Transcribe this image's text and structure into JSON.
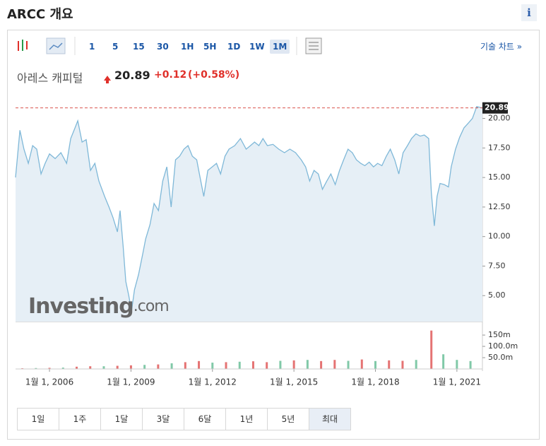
{
  "header": {
    "title": "ARCC 개요",
    "info": "i"
  },
  "toolbar": {
    "intervals": [
      "1",
      "5",
      "15",
      "30",
      "1H",
      "5H",
      "1D",
      "1W",
      "1M"
    ],
    "selected": 8,
    "link": "기술 차트 »"
  },
  "quote": {
    "name": "아레스 캐피털",
    "price": 20.89,
    "change": "+0.12",
    "change_pct": "(+0.58%)"
  },
  "watermark": [
    "Investing",
    ".com"
  ],
  "chart_data": [
    {
      "type": "area",
      "color": "#7fb8d8",
      "fill": "#e6eff6",
      "x": [
        2004.75,
        2004.91,
        2005.06,
        2005.22,
        2005.38,
        2005.53,
        2005.69,
        2005.84,
        2006.0,
        2006.21,
        2006.42,
        2006.63,
        2006.78,
        2006.94,
        2007.04,
        2007.2,
        2007.35,
        2007.51,
        2007.67,
        2007.82,
        2008.03,
        2008.19,
        2008.34,
        2008.5,
        2008.6,
        2008.71,
        2008.81,
        2008.92,
        2009.02,
        2009.13,
        2009.28,
        2009.44,
        2009.54,
        2009.7,
        2009.85,
        2010.01,
        2010.17,
        2010.32,
        2010.48,
        2010.64,
        2010.79,
        2010.95,
        2011.1,
        2011.26,
        2011.42,
        2011.52,
        2011.68,
        2011.83,
        2011.99,
        2012.15,
        2012.3,
        2012.46,
        2012.61,
        2012.82,
        2013.03,
        2013.24,
        2013.4,
        2013.55,
        2013.71,
        2013.86,
        2014.02,
        2014.23,
        2014.44,
        2014.65,
        2014.85,
        2015.06,
        2015.27,
        2015.43,
        2015.58,
        2015.74,
        2015.9,
        2016.05,
        2016.21,
        2016.36,
        2016.52,
        2016.68,
        2016.83,
        2016.99,
        2017.15,
        2017.3,
        2017.46,
        2017.61,
        2017.77,
        2017.93,
        2018.08,
        2018.24,
        2018.4,
        2018.55,
        2018.71,
        2018.86,
        2019.02,
        2019.18,
        2019.33,
        2019.49,
        2019.65,
        2019.8,
        2019.96,
        2020.06,
        2020.17,
        2020.27,
        2020.38,
        2020.53,
        2020.69,
        2020.79,
        2020.95,
        2021.1,
        2021.26,
        2021.42,
        2021.57,
        2021.73,
        2021.94
      ],
      "values": [
        15.0,
        19.0,
        17.4,
        16.2,
        17.7,
        17.4,
        15.3,
        16.2,
        17.0,
        16.6,
        17.1,
        16.2,
        18.3,
        19.2,
        19.8,
        18.0,
        18.2,
        15.6,
        16.2,
        14.7,
        13.4,
        12.5,
        11.6,
        10.4,
        12.2,
        9.2,
        6.2,
        5.0,
        3.7,
        5.5,
        6.8,
        8.6,
        9.8,
        11.0,
        12.8,
        12.2,
        14.7,
        15.9,
        12.5,
        16.5,
        16.8,
        17.4,
        17.7,
        16.8,
        16.5,
        15.3,
        13.4,
        15.6,
        15.9,
        16.2,
        15.3,
        16.8,
        17.4,
        17.7,
        18.3,
        17.4,
        17.7,
        18.0,
        17.7,
        18.3,
        17.7,
        17.8,
        17.4,
        17.1,
        17.4,
        17.1,
        16.5,
        15.9,
        14.7,
        15.6,
        15.3,
        14.0,
        14.7,
        15.3,
        14.4,
        15.6,
        16.5,
        17.4,
        17.1,
        16.5,
        16.2,
        16.0,
        16.3,
        15.9,
        16.2,
        16.0,
        16.8,
        17.4,
        16.5,
        15.3,
        17.1,
        17.7,
        18.3,
        18.7,
        18.5,
        18.6,
        18.3,
        13.7,
        10.9,
        13.4,
        14.5,
        14.4,
        14.2,
        15.9,
        17.4,
        18.4,
        19.2,
        19.6,
        20.0,
        21.0,
        20.89
      ],
      "xlim": [
        2004.75,
        2021.94
      ],
      "ylim": [
        2.8,
        21.35
      ],
      "yticks": [
        {
          "value": 5,
          "label": "5.00"
        },
        {
          "value": 7.5,
          "label": "7.50"
        },
        {
          "value": 10,
          "label": "10.00"
        },
        {
          "value": 12.5,
          "label": "12.50"
        },
        {
          "value": 15,
          "label": "15.00"
        },
        {
          "value": 17.5,
          "label": "17.50"
        },
        {
          "value": 20,
          "label": "20.00"
        }
      ]
    },
    {
      "type": "bar",
      "xlim": [
        2004.75,
        2021.94
      ],
      "ylim": [
        0,
        194
      ],
      "x": [
        2005,
        2005.5,
        2006,
        2006.5,
        2007,
        2007.5,
        2008,
        2008.5,
        2009,
        2009.5,
        2010,
        2010.5,
        2011,
        2011.5,
        2012,
        2012.5,
        2013,
        2013.5,
        2014,
        2014.5,
        2015,
        2015.5,
        2016,
        2016.5,
        2017,
        2017.5,
        2018,
        2018.5,
        2019,
        2019.5,
        2020.06,
        2020.5,
        2021,
        2021.5
      ],
      "values": [
        3,
        4,
        5,
        6,
        10,
        12,
        12,
        14,
        16,
        18,
        20,
        25,
        30,
        35,
        28,
        30,
        32,
        34,
        30,
        36,
        38,
        40,
        35,
        40,
        36,
        42,
        35,
        38,
        36,
        40,
        170,
        65,
        40,
        35
      ],
      "colors": [
        "#e57373",
        "#81c9a8",
        "#e57373",
        "#81c9a8",
        "#e57373",
        "#e57373",
        "#81c9a8",
        "#e57373",
        "#e57373",
        "#81c9a8",
        "#e57373",
        "#81c9a8",
        "#e57373",
        "#e57373",
        "#81c9a8",
        "#e57373",
        "#81c9a8",
        "#e57373",
        "#e57373",
        "#81c9a8",
        "#e57373",
        "#81c9a8",
        "#e57373",
        "#e57373",
        "#81c9a8",
        "#e57373",
        "#81c9a8",
        "#e57373",
        "#e57373",
        "#81c9a8",
        "#e57373",
        "#81c9a8",
        "#81c9a8",
        "#81c9a8"
      ],
      "yticks": [
        {
          "value": 50,
          "label": "50.0m"
        },
        {
          "value": 100,
          "label": "100.0m"
        },
        {
          "value": 150,
          "label": "150m"
        }
      ],
      "xticks": [
        {
          "value": 2006,
          "label": "1월 1, 2006"
        },
        {
          "value": 2009,
          "label": "1월 1, 2009"
        },
        {
          "value": 2012,
          "label": "1월 1, 2012"
        },
        {
          "value": 2015,
          "label": "1월 1, 2015"
        },
        {
          "value": 2018,
          "label": "1월 1, 2018"
        },
        {
          "value": 2021,
          "label": "1월 1, 2021"
        }
      ]
    }
  ],
  "ranges": {
    "items": [
      "1일",
      "1주",
      "1달",
      "3달",
      "6달",
      "1년",
      "5년",
      "최대"
    ],
    "selected": 7
  }
}
